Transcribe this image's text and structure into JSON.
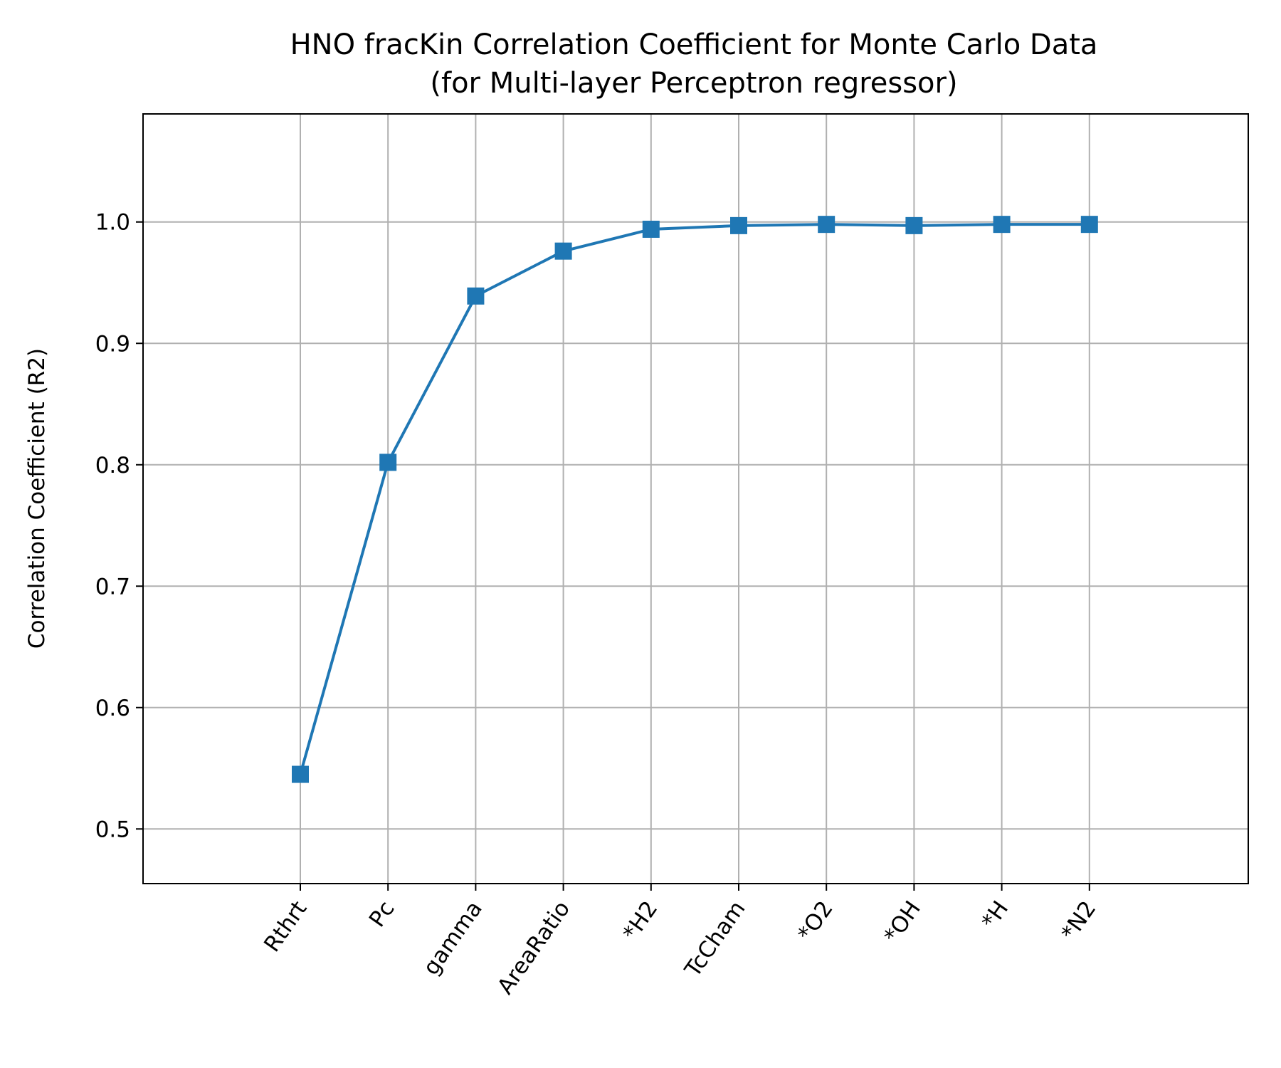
{
  "chart_data": {
    "type": "line",
    "title": "HNO fracKin Correlation Coefficient for Monte Carlo Data",
    "subtitle": "(for Multi-layer Perceptron regressor)",
    "xlabel": "",
    "ylabel": "Correlation Coefficient (R2)",
    "categories": [
      "Rthrt",
      "Pc",
      "gamma",
      "AreaRatio",
      "*H2",
      "TcCham",
      "*O2",
      "*OH",
      "*H",
      "*N2"
    ],
    "series": [
      {
        "values": [
          0.545,
          0.802,
          0.939,
          0.976,
          0.994,
          0.997,
          0.998,
          0.997,
          0.998,
          0.998
        ],
        "color": "#1f77b4",
        "marker": "square"
      }
    ],
    "ylim": [
      0.455,
      1.089
    ],
    "yticks": [
      0.5,
      0.6,
      0.7,
      0.8,
      0.9,
      1.0
    ],
    "ytick_labels": [
      "0.5",
      "0.6",
      "0.7",
      "0.8",
      "0.9",
      "1.0"
    ],
    "xtick_rotation": "55deg",
    "grid": true,
    "legend": "none"
  }
}
